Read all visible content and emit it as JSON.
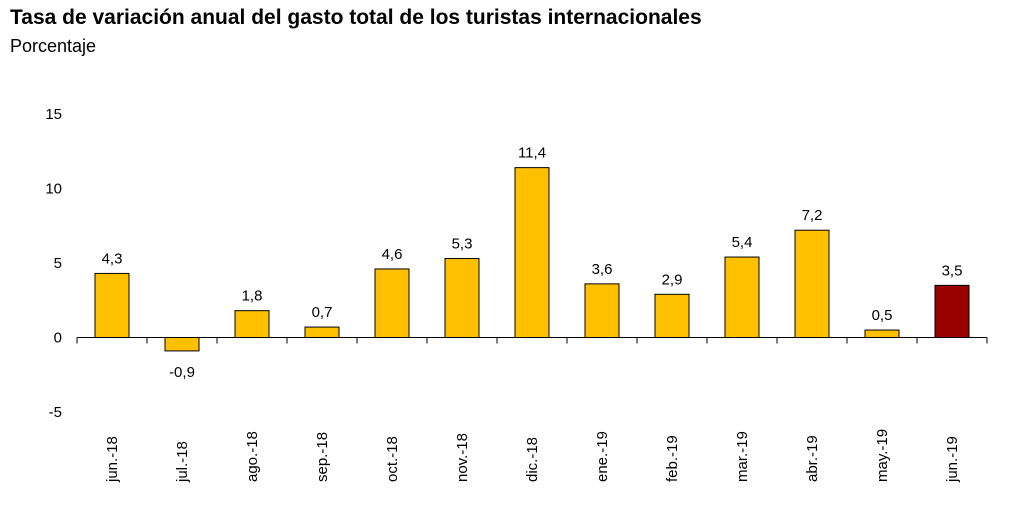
{
  "title": "Tasa de variación anual del gasto total de los turistas internacionales",
  "subtitle": "Porcentaje",
  "colors": {
    "bar": "#FFC000",
    "highlight": "#990000",
    "axis": "#000000"
  },
  "chart_data": {
    "type": "bar",
    "title": "Tasa de variación anual del gasto total de los turistas internacionales",
    "subtitle": "Porcentaje",
    "categories": [
      "jun.-18",
      "jul.-18",
      "ago.-18",
      "sep.-18",
      "oct.-18",
      "nov.-18",
      "dic.-18",
      "ene.-19",
      "feb.-19",
      "mar.-19",
      "abr.-19",
      "may.-19",
      "jun.-19"
    ],
    "values": [
      4.3,
      -0.9,
      1.8,
      0.7,
      4.6,
      5.3,
      11.4,
      3.6,
      2.9,
      5.4,
      7.2,
      0.5,
      3.5
    ],
    "value_labels": [
      "4,3",
      "-0,9",
      "1,8",
      "0,7",
      "4,6",
      "5,3",
      "11,4",
      "3,6",
      "2,9",
      "5,4",
      "7,2",
      "0,5",
      "3,5"
    ],
    "highlight_index": 12,
    "ylim": [
      -5,
      15
    ],
    "yticks": [
      -5,
      0,
      5,
      10,
      15
    ],
    "ytick_labels": [
      "-5",
      "0",
      "5",
      "10",
      "15"
    ],
    "xlabel": "",
    "ylabel": "",
    "grid": false,
    "legend": "none"
  }
}
